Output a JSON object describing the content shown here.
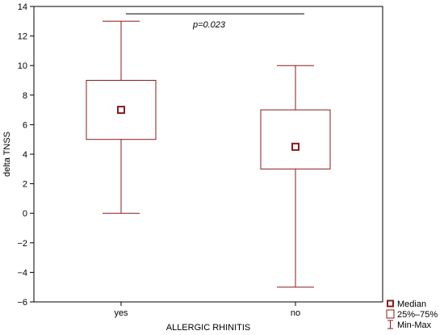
{
  "chart_data": {
    "type": "boxplot",
    "xlabel": "ALLERGIC RHINITIS",
    "ylabel": "delta TNSS",
    "ylim": [
      -6,
      14
    ],
    "yticks": [
      -6,
      -4,
      -2,
      0,
      2,
      4,
      6,
      8,
      10,
      12,
      14
    ],
    "ytick_labels": [
      "−6",
      "−4",
      "−2",
      "0",
      "2",
      "4",
      "6",
      "8",
      "10",
      "12",
      "14"
    ],
    "categories": [
      "yes",
      "no"
    ],
    "boxes": [
      {
        "category": "yes",
        "min": 0,
        "q1": 5,
        "median": 7,
        "q3": 9,
        "max": 13
      },
      {
        "category": "no",
        "min": -5,
        "q1": 3,
        "median": 4.5,
        "q3": 7,
        "max": 10
      }
    ],
    "annotation": {
      "text": "p=0.023",
      "from": "yes",
      "to": "no",
      "y": 13.5
    },
    "legend": {
      "position": "bottom-right",
      "entries": [
        {
          "label": "Median",
          "symbol": "square-marker"
        },
        {
          "label": "25%–75%",
          "symbol": "box"
        },
        {
          "label": "Min-Max",
          "symbol": "whisker"
        }
      ]
    },
    "colors": {
      "box": "#8b1a1a",
      "axis": "#000000"
    },
    "grid": false
  }
}
